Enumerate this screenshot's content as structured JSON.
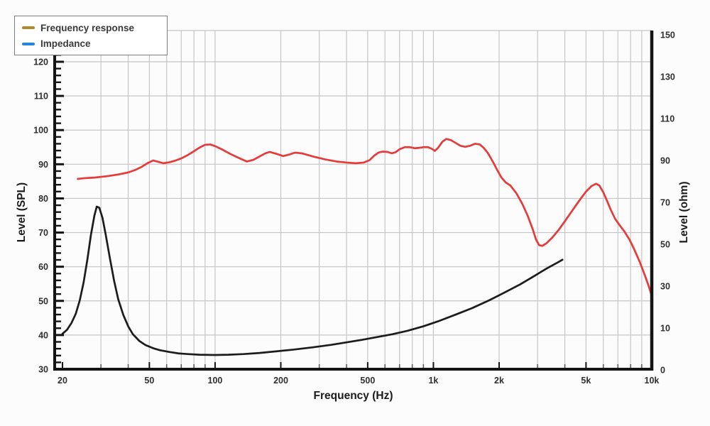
{
  "legend": {
    "items": [
      {
        "label": "Frequency response",
        "swatch_color": "#b1882a"
      },
      {
        "label": "Impedance",
        "swatch_color": "#2385e0"
      }
    ],
    "position": "top-left"
  },
  "axes": {
    "x": {
      "title": "Frequency (Hz)",
      "scale": "log",
      "range_hz": [
        20,
        10000
      ],
      "ticks": [
        {
          "value": 20,
          "label": "20"
        },
        {
          "value": 50,
          "label": "50"
        },
        {
          "value": 100,
          "label": "100"
        },
        {
          "value": 200,
          "label": "200"
        },
        {
          "value": 500,
          "label": "500"
        },
        {
          "value": 1000,
          "label": "1k"
        },
        {
          "value": 2000,
          "label": "2k"
        },
        {
          "value": 5000,
          "label": "5k"
        },
        {
          "value": 10000,
          "label": "10k"
        }
      ],
      "minor_gridlines_hz": [
        30,
        40,
        50,
        60,
        70,
        80,
        90,
        100,
        200,
        300,
        400,
        500,
        600,
        700,
        800,
        900,
        1000,
        2000,
        3000,
        4000,
        5000,
        6000,
        7000,
        8000,
        9000
      ]
    },
    "y_left": {
      "title": "Level (SPL)",
      "unit": "dB",
      "range": [
        30,
        120
      ],
      "tick_step_major": 10,
      "tick_step_minor": 2,
      "ticks": [
        120,
        110,
        100,
        90,
        80,
        70,
        60,
        50,
        40,
        30
      ]
    },
    "y_right": {
      "title": "Level (ohm)",
      "unit": "ohm",
      "range": [
        0,
        150
      ],
      "tick_labels": [
        "150",
        "130",
        "110",
        "90",
        "70",
        "50",
        "30",
        "10",
        "0"
      ]
    }
  },
  "chart_data": {
    "type": "line",
    "x_scale": "log",
    "x_range_hz": [
      20,
      10000
    ],
    "grid": {
      "color": "#c6c6c6",
      "horizontal_step_db": 10,
      "vertical": "log-decade minors"
    },
    "legend_position": "top-left",
    "series": [
      {
        "name": "Frequency response",
        "color": "#e63b3b",
        "y_axis": "left",
        "unit": "dB SPL",
        "points": [
          [
            23.5,
            85.7
          ],
          [
            25,
            85.9
          ],
          [
            28,
            86.1
          ],
          [
            32,
            86.5
          ],
          [
            36,
            87.0
          ],
          [
            40,
            87.6
          ],
          [
            43,
            88.3
          ],
          [
            46,
            89.2
          ],
          [
            49,
            90.3
          ],
          [
            52,
            91.1
          ],
          [
            55,
            90.7
          ],
          [
            58,
            90.3
          ],
          [
            62,
            90.6
          ],
          [
            66,
            91.1
          ],
          [
            70,
            91.7
          ],
          [
            75,
            92.7
          ],
          [
            80,
            93.8
          ],
          [
            85,
            94.9
          ],
          [
            90,
            95.7
          ],
          [
            95,
            95.8
          ],
          [
            100,
            95.3
          ],
          [
            108,
            94.3
          ],
          [
            116,
            93.2
          ],
          [
            124,
            92.3
          ],
          [
            132,
            91.5
          ],
          [
            140,
            90.8
          ],
          [
            150,
            91.3
          ],
          [
            160,
            92.3
          ],
          [
            170,
            93.2
          ],
          [
            178,
            93.6
          ],
          [
            190,
            93.1
          ],
          [
            205,
            92.4
          ],
          [
            220,
            92.9
          ],
          [
            232,
            93.4
          ],
          [
            250,
            93.2
          ],
          [
            280,
            92.3
          ],
          [
            320,
            91.4
          ],
          [
            360,
            90.8
          ],
          [
            400,
            90.5
          ],
          [
            440,
            90.3
          ],
          [
            480,
            90.5
          ],
          [
            510,
            91.2
          ],
          [
            535,
            92.5
          ],
          [
            560,
            93.4
          ],
          [
            585,
            93.7
          ],
          [
            615,
            93.6
          ],
          [
            645,
            93.2
          ],
          [
            670,
            93.5
          ],
          [
            700,
            94.4
          ],
          [
            740,
            95.0
          ],
          [
            780,
            95.0
          ],
          [
            820,
            94.7
          ],
          [
            860,
            94.8
          ],
          [
            900,
            95.0
          ],
          [
            945,
            95.0
          ],
          [
            985,
            94.5
          ],
          [
            1015,
            93.9
          ],
          [
            1050,
            94.8
          ],
          [
            1100,
            96.6
          ],
          [
            1145,
            97.4
          ],
          [
            1200,
            97.1
          ],
          [
            1260,
            96.3
          ],
          [
            1330,
            95.4
          ],
          [
            1400,
            95.1
          ],
          [
            1470,
            95.4
          ],
          [
            1550,
            96.0
          ],
          [
            1630,
            95.8
          ],
          [
            1700,
            94.8
          ],
          [
            1780,
            93.2
          ],
          [
            1870,
            90.8
          ],
          [
            1960,
            88.3
          ],
          [
            2050,
            86.1
          ],
          [
            2150,
            84.6
          ],
          [
            2250,
            83.8
          ],
          [
            2400,
            81.5
          ],
          [
            2550,
            78.5
          ],
          [
            2700,
            75.0
          ],
          [
            2850,
            71.0
          ],
          [
            2950,
            68.0
          ],
          [
            3050,
            66.3
          ],
          [
            3150,
            66.1
          ],
          [
            3300,
            66.9
          ],
          [
            3500,
            68.5
          ],
          [
            3750,
            70.8
          ],
          [
            4000,
            73.3
          ],
          [
            4300,
            76.2
          ],
          [
            4650,
            79.3
          ],
          [
            5000,
            82.0
          ],
          [
            5300,
            83.6
          ],
          [
            5550,
            84.3
          ],
          [
            5750,
            83.8
          ],
          [
            6000,
            81.8
          ],
          [
            6250,
            79.2
          ],
          [
            6500,
            76.6
          ],
          [
            6800,
            74.0
          ],
          [
            7100,
            72.3
          ],
          [
            7500,
            70.3
          ],
          [
            7900,
            68.0
          ],
          [
            8300,
            65.2
          ],
          [
            8800,
            61.5
          ],
          [
            9300,
            57.5
          ],
          [
            9700,
            54.2
          ],
          [
            10000,
            51.5
          ]
        ]
      },
      {
        "name": "Impedance",
        "color": "#1c1c1c",
        "y_axis": "right",
        "unit": "ohm",
        "points": [
          [
            20,
            15.7
          ],
          [
            21,
            17.5
          ],
          [
            22,
            20.5
          ],
          [
            23,
            24.5
          ],
          [
            24,
            30.5
          ],
          [
            25,
            38.5
          ],
          [
            26,
            48.5
          ],
          [
            27,
            59.5
          ],
          [
            28,
            68.0
          ],
          [
            28.7,
            72.0
          ],
          [
            29.5,
            71.5
          ],
          [
            30.5,
            67.0
          ],
          [
            31.5,
            60.0
          ],
          [
            33,
            49.0
          ],
          [
            34.5,
            39.0
          ],
          [
            36,
            31.0
          ],
          [
            38,
            24.0
          ],
          [
            40,
            19.0
          ],
          [
            42,
            15.5
          ],
          [
            45,
            12.5
          ],
          [
            48,
            10.7
          ],
          [
            52,
            9.3
          ],
          [
            56,
            8.4
          ],
          [
            62,
            7.6
          ],
          [
            68,
            7.0
          ],
          [
            75,
            6.7
          ],
          [
            85,
            6.4
          ],
          [
            100,
            6.3
          ],
          [
            115,
            6.4
          ],
          [
            135,
            6.7
          ],
          [
            160,
            7.2
          ],
          [
            190,
            7.9
          ],
          [
            230,
            8.7
          ],
          [
            280,
            9.7
          ],
          [
            340,
            10.8
          ],
          [
            400,
            11.9
          ],
          [
            470,
            13.0
          ],
          [
            550,
            14.2
          ],
          [
            650,
            15.5
          ],
          [
            760,
            17.0
          ],
          [
            900,
            19.0
          ],
          [
            1050,
            21.2
          ],
          [
            1250,
            24.0
          ],
          [
            1500,
            27.0
          ],
          [
            1800,
            30.5
          ],
          [
            2100,
            33.8
          ],
          [
            2500,
            37.6
          ],
          [
            2900,
            41.3
          ],
          [
            3300,
            44.6
          ],
          [
            3650,
            46.9
          ],
          [
            3900,
            48.5
          ]
        ]
      }
    ]
  },
  "colors": {
    "background": "#fcfcfc",
    "plot_background": "#ffffff",
    "grid": "#c6c6c6",
    "axis_line": "#141414",
    "tick_text": "#2f2f2f",
    "title_text": "#1a1a1a",
    "curve_frequency_response": "#e63b3b",
    "curve_impedance": "#1c1c1c"
  }
}
